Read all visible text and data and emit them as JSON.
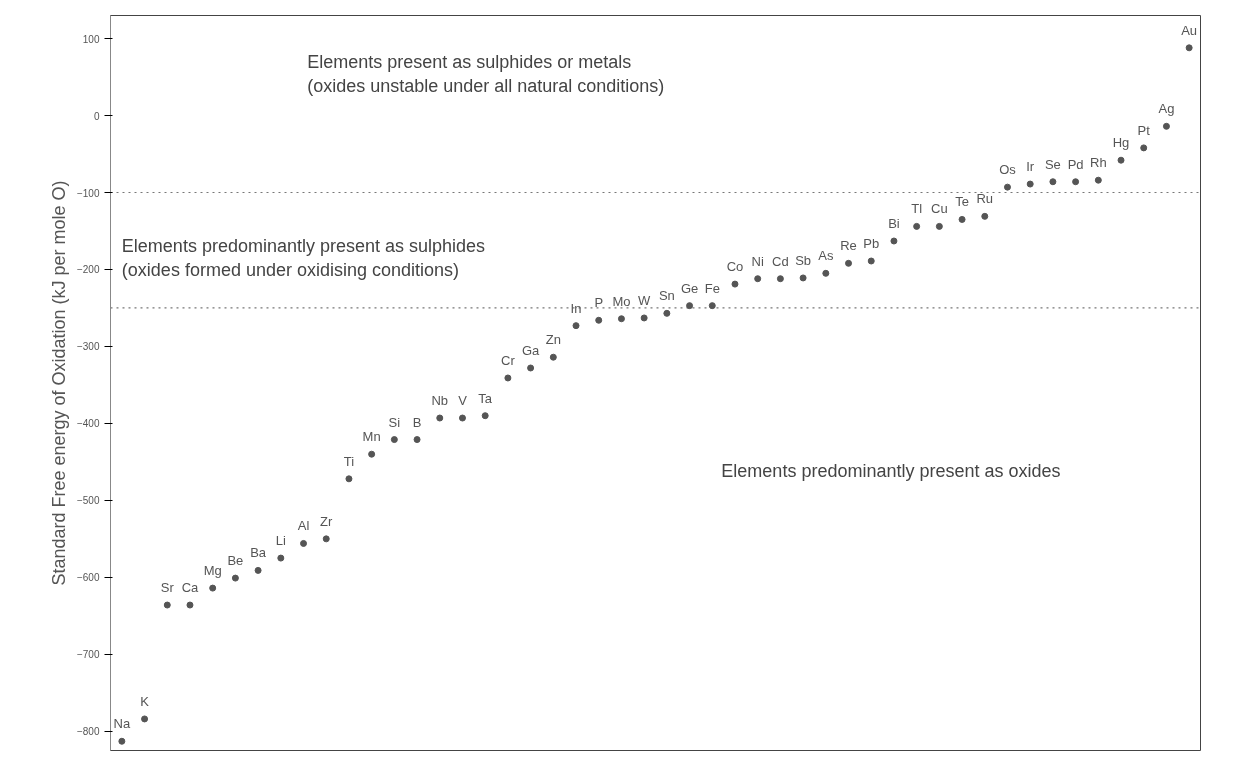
{
  "chart_data": {
    "type": "scatter",
    "ylabel": "Standard Free energy of Oxidation (kJ per mole O)",
    "categories": [
      null,
      null,
      null,
      null,
      null,
      null,
      null,
      null,
      null,
      null,
      null,
      null,
      null,
      null,
      null,
      null,
      null,
      null,
      null,
      null,
      null,
      null,
      null,
      null,
      null,
      null,
      null,
      null,
      null,
      null,
      null,
      null,
      null,
      null,
      null,
      null,
      null,
      null,
      null,
      null,
      null,
      null,
      null,
      null,
      null,
      null,
      null,
      null
    ],
    "values": [
      -813,
      -784,
      -636,
      -636,
      -614,
      -601,
      -591,
      -575,
      -556,
      -550,
      -472,
      -440,
      -421,
      -421,
      -393,
      -393,
      -390,
      -341,
      -328,
      -314,
      -273,
      -266,
      -264,
      -263,
      -257,
      -247,
      -247,
      -219,
      -212,
      -212,
      -211,
      -205,
      -192,
      -189,
      -163,
      -144,
      -144,
      -135,
      -131,
      -93,
      -89,
      -86,
      -86,
      -84,
      -58,
      -42,
      -14,
      88
    ],
    "value_labels": [
      "Na",
      "K",
      "Sr",
      "Ca",
      "Mg",
      "Be",
      "Ba",
      "Li",
      "Al",
      "Zr",
      "Ti",
      "Mn",
      "Si",
      "B",
      "Nb",
      "V",
      "Ta",
      "Cr",
      "Ga",
      "Zn",
      "In",
      "P",
      "Mo",
      "W",
      "Sn",
      "Ge",
      "Fe",
      "Co",
      "Ni",
      "Cd",
      "Sb",
      "As",
      "Re",
      "Pb",
      "Bi",
      "Tl",
      "Cu",
      "Te",
      "Ru",
      "Os",
      "Ir",
      "Se",
      "Pd",
      "Rh",
      "Hg",
      "Pt",
      "Ag",
      "Au"
    ],
    "color": "#555555",
    "marker": "circle",
    "ylim": [
      -825,
      130
    ],
    "yticks": [
      -800,
      -700,
      -600,
      -500,
      -400,
      -300,
      -200,
      -100,
      0,
      100
    ],
    "grid": false,
    "tick_labels": "y",
    "ref_lines": [
      {
        "axis": "y",
        "value": -100,
        "label": null,
        "color": "#777777",
        "line_style": "dotted"
      },
      {
        "axis": "y",
        "value": -250,
        "label": null,
        "color": "#777777",
        "line_style": "dotted"
      }
    ],
    "annotations": [
      "Elements present as sulphides or metals\n(oxides unstable under all natural conditions)",
      "Elements predominantly present as sulphides\n(oxides formed under oxidising conditions)",
      "Elements predominantly present as oxides"
    ]
  }
}
